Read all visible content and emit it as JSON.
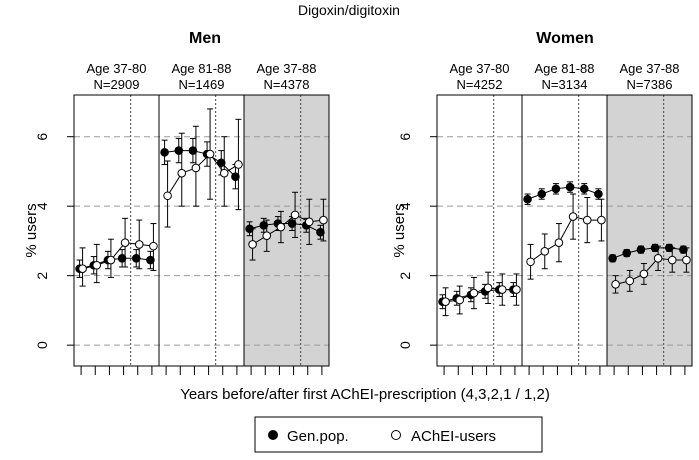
{
  "figure": {
    "title": "Digoxin/digitoxin",
    "xlabel": "Years before/after first AChEI-prescription (4,3,2,1 / 1,2)",
    "legend": [
      {
        "label": "Gen.pop.",
        "marker": "filled"
      },
      {
        "label": "AChEI-users",
        "marker": "open"
      }
    ]
  },
  "colors": {
    "shade": "#d3d3d3",
    "grid": "#9a9a9a",
    "axis": "#000000"
  },
  "chart_data": [
    {
      "type": "line",
      "title": "Men",
      "ylabel": "% users",
      "ylim": [
        -0.6,
        7.2
      ],
      "yticks": [
        0,
        2,
        4,
        6
      ],
      "x_positions": [
        1,
        2,
        3,
        4,
        5,
        6
      ],
      "groups": [
        {
          "header_line1": "Age 37-80",
          "header_line2": "N=2909",
          "shaded": false,
          "series": [
            {
              "name": "Gen.pop.",
              "values": [
                2.2,
                2.3,
                2.45,
                2.5,
                2.5,
                2.45
              ],
              "lower": [
                1.95,
                2.05,
                2.2,
                2.25,
                2.25,
                2.2
              ],
              "upper": [
                2.45,
                2.55,
                2.7,
                2.75,
                2.75,
                2.7
              ]
            },
            {
              "name": "AChEI-users",
              "values": [
                2.2,
                2.3,
                2.45,
                2.95,
                2.9,
                2.85
              ],
              "lower": [
                1.7,
                1.8,
                1.95,
                2.25,
                2.2,
                2.15
              ],
              "upper": [
                2.8,
                2.9,
                3.05,
                3.65,
                3.6,
                3.5
              ]
            }
          ]
        },
        {
          "header_line1": "Age 81-88",
          "header_line2": "N=1469",
          "shaded": false,
          "series": [
            {
              "name": "Gen.pop.",
              "values": [
                5.55,
                5.6,
                5.6,
                5.5,
                5.25,
                4.85
              ],
              "lower": [
                5.2,
                5.25,
                5.25,
                5.15,
                4.9,
                4.5
              ],
              "upper": [
                5.9,
                5.95,
                5.95,
                5.85,
                5.6,
                5.2
              ]
            },
            {
              "name": "AChEI-users",
              "values": [
                4.3,
                4.95,
                5.1,
                5.5,
                4.95,
                5.2
              ],
              "lower": [
                3.4,
                4.0,
                4.0,
                4.2,
                4.0,
                3.9
              ],
              "upper": [
                5.3,
                6.1,
                6.3,
                6.8,
                6.0,
                6.5
              ]
            }
          ]
        },
        {
          "header_line1": "Age 37-88",
          "header_line2": "N=4378",
          "shaded": true,
          "series": [
            {
              "name": "Gen.pop.",
              "values": [
                3.35,
                3.45,
                3.5,
                3.5,
                3.45,
                3.25
              ],
              "lower": [
                3.15,
                3.25,
                3.3,
                3.3,
                3.25,
                3.05
              ],
              "upper": [
                3.55,
                3.65,
                3.7,
                3.7,
                3.65,
                3.45
              ]
            },
            {
              "name": "AChEI-users",
              "values": [
                2.9,
                3.15,
                3.4,
                3.75,
                3.55,
                3.6
              ],
              "lower": [
                2.45,
                2.7,
                2.95,
                3.1,
                2.9,
                3.0
              ],
              "upper": [
                3.35,
                3.6,
                3.85,
                4.4,
                4.2,
                4.2
              ]
            }
          ]
        }
      ]
    },
    {
      "type": "line",
      "title": "Women",
      "ylabel": "% users",
      "ylim": [
        -0.6,
        7.2
      ],
      "yticks": [
        0,
        2,
        4,
        6
      ],
      "x_positions": [
        1,
        2,
        3,
        4,
        5,
        6
      ],
      "groups": [
        {
          "header_line1": "Age 37-80",
          "header_line2": "N=4252",
          "shaded": false,
          "series": [
            {
              "name": "Gen.pop.",
              "values": [
                1.25,
                1.35,
                1.45,
                1.55,
                1.6,
                1.6
              ],
              "lower": [
                1.05,
                1.15,
                1.25,
                1.35,
                1.4,
                1.4
              ],
              "upper": [
                1.45,
                1.55,
                1.65,
                1.75,
                1.8,
                1.8
              ]
            },
            {
              "name": "AChEI-users",
              "values": [
                1.25,
                1.3,
                1.5,
                1.65,
                1.6,
                1.6
              ],
              "lower": [
                0.85,
                0.9,
                1.05,
                1.2,
                1.15,
                1.15
              ],
              "upper": [
                1.65,
                1.7,
                1.95,
                2.1,
                2.05,
                2.05
              ]
            }
          ]
        },
        {
          "header_line1": "Age 81-88",
          "header_line2": "N=3134",
          "shaded": false,
          "series": [
            {
              "name": "Gen.pop.",
              "values": [
                4.2,
                4.35,
                4.5,
                4.55,
                4.5,
                4.35
              ],
              "lower": [
                4.05,
                4.2,
                4.35,
                4.4,
                4.35,
                4.2
              ],
              "upper": [
                4.35,
                4.5,
                4.65,
                4.7,
                4.65,
                4.5
              ]
            },
            {
              "name": "AChEI-users",
              "values": [
                2.4,
                2.7,
                2.95,
                3.7,
                3.6,
                3.6
              ],
              "lower": [
                1.9,
                2.2,
                2.4,
                3.05,
                2.95,
                3.0
              ],
              "upper": [
                2.9,
                3.2,
                3.5,
                4.35,
                4.25,
                4.2
              ]
            }
          ]
        },
        {
          "header_line1": "Age 37-88",
          "header_line2": "N=7386",
          "shaded": true,
          "series": [
            {
              "name": "Gen.pop.",
              "values": [
                2.5,
                2.65,
                2.75,
                2.8,
                2.8,
                2.75
              ],
              "lower": [
                2.4,
                2.55,
                2.65,
                2.7,
                2.7,
                2.65
              ],
              "upper": [
                2.6,
                2.75,
                2.85,
                2.9,
                2.9,
                2.85
              ]
            },
            {
              "name": "AChEI-users",
              "values": [
                1.75,
                1.85,
                2.05,
                2.5,
                2.45,
                2.45
              ],
              "lower": [
                1.5,
                1.55,
                1.75,
                2.15,
                2.1,
                2.1
              ],
              "upper": [
                2.0,
                2.15,
                2.35,
                2.85,
                2.8,
                2.8
              ]
            }
          ]
        }
      ]
    }
  ]
}
